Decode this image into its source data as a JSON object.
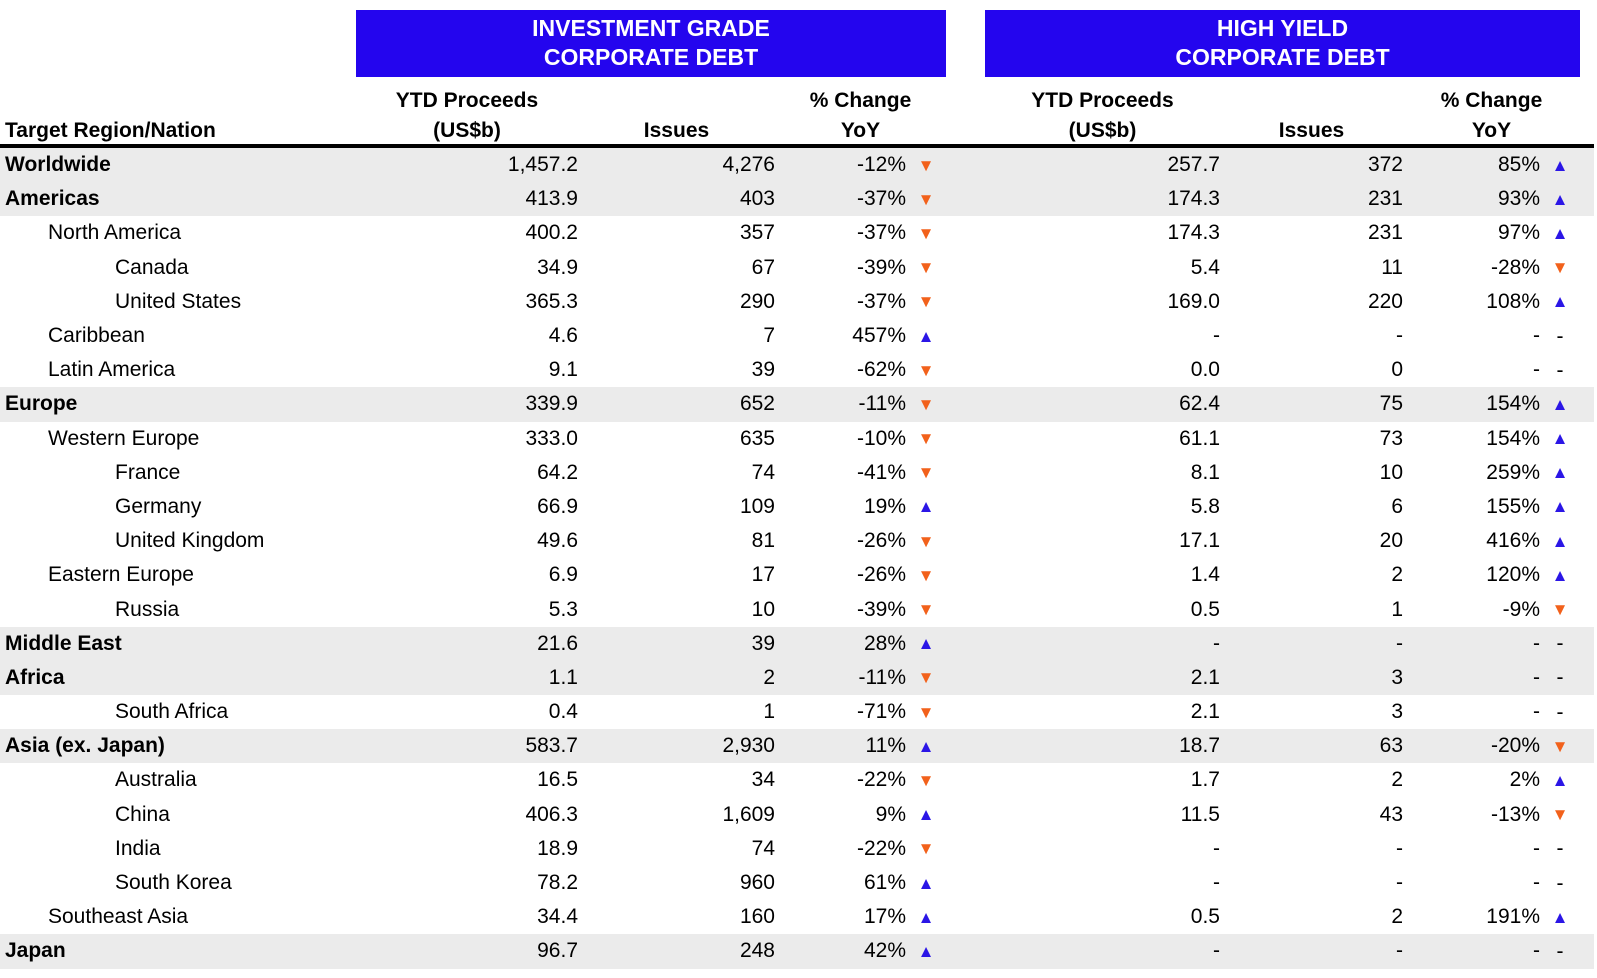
{
  "title_banners": {
    "ig_line1": "INVESTMENT GRADE",
    "ig_line2": "CORPORATE DEBT",
    "hy_line1": "HIGH YIELD",
    "hy_line2": "CORPORATE DEBT"
  },
  "column_headers": {
    "region": "Target Region/Nation",
    "proceeds_l1": "YTD Proceeds",
    "proceeds_l2": "(US$b)",
    "issues": "Issues",
    "change_l1": "% Change",
    "change_l2": "YoY"
  },
  "icons": {
    "up": "▲",
    "down": "▼",
    "dash": "-"
  },
  "colors": {
    "banner_blue": "#2405EE",
    "arrow_up_blue": "#2B16E6",
    "arrow_down_orange": "#F2611B",
    "row_shade_gray": "#EBEBEB"
  },
  "chart_data": {
    "type": "table",
    "columns": [
      "Target Region/Nation",
      "IG YTD Proceeds (US$b)",
      "IG Issues",
      "IG % Change YoY",
      "HY YTD Proceeds (US$b)",
      "HY Issues",
      "HY % Change YoY"
    ],
    "rows": [
      {
        "region": "Worldwide",
        "level": 0,
        "bold": true,
        "shaded": true,
        "ig": {
          "proceeds": "1,457.2",
          "issues": "4,276",
          "change": "-12%",
          "dir": "down"
        },
        "hy": {
          "proceeds": "257.7",
          "issues": "372",
          "change": "85%",
          "dir": "up"
        }
      },
      {
        "region": "Americas",
        "level": 0,
        "bold": true,
        "shaded": true,
        "ig": {
          "proceeds": "413.9",
          "issues": "403",
          "change": "-37%",
          "dir": "down"
        },
        "hy": {
          "proceeds": "174.3",
          "issues": "231",
          "change": "93%",
          "dir": "up"
        }
      },
      {
        "region": "North America",
        "level": 1,
        "bold": false,
        "shaded": false,
        "ig": {
          "proceeds": "400.2",
          "issues": "357",
          "change": "-37%",
          "dir": "down"
        },
        "hy": {
          "proceeds": "174.3",
          "issues": "231",
          "change": "97%",
          "dir": "up"
        }
      },
      {
        "region": "Canada",
        "level": 2,
        "bold": false,
        "shaded": false,
        "ig": {
          "proceeds": "34.9",
          "issues": "67",
          "change": "-39%",
          "dir": "down"
        },
        "hy": {
          "proceeds": "5.4",
          "issues": "11",
          "change": "-28%",
          "dir": "down"
        }
      },
      {
        "region": "United States",
        "level": 2,
        "bold": false,
        "shaded": false,
        "ig": {
          "proceeds": "365.3",
          "issues": "290",
          "change": "-37%",
          "dir": "down"
        },
        "hy": {
          "proceeds": "169.0",
          "issues": "220",
          "change": "108%",
          "dir": "up"
        }
      },
      {
        "region": "Caribbean",
        "level": 1,
        "bold": false,
        "shaded": false,
        "ig": {
          "proceeds": "4.6",
          "issues": "7",
          "change": "457%",
          "dir": "up"
        },
        "hy": {
          "proceeds": "-",
          "issues": "-",
          "change": "-",
          "dir": "dash"
        }
      },
      {
        "region": "Latin America",
        "level": 1,
        "bold": false,
        "shaded": false,
        "ig": {
          "proceeds": "9.1",
          "issues": "39",
          "change": "-62%",
          "dir": "down"
        },
        "hy": {
          "proceeds": "0.0",
          "issues": "0",
          "change": "-",
          "dir": "dash"
        }
      },
      {
        "region": "Europe",
        "level": 0,
        "bold": true,
        "shaded": true,
        "ig": {
          "proceeds": "339.9",
          "issues": "652",
          "change": "-11%",
          "dir": "down"
        },
        "hy": {
          "proceeds": "62.4",
          "issues": "75",
          "change": "154%",
          "dir": "up"
        }
      },
      {
        "region": "Western Europe",
        "level": 1,
        "bold": false,
        "shaded": false,
        "ig": {
          "proceeds": "333.0",
          "issues": "635",
          "change": "-10%",
          "dir": "down"
        },
        "hy": {
          "proceeds": "61.1",
          "issues": "73",
          "change": "154%",
          "dir": "up"
        }
      },
      {
        "region": "France",
        "level": 2,
        "bold": false,
        "shaded": false,
        "ig": {
          "proceeds": "64.2",
          "issues": "74",
          "change": "-41%",
          "dir": "down"
        },
        "hy": {
          "proceeds": "8.1",
          "issues": "10",
          "change": "259%",
          "dir": "up"
        }
      },
      {
        "region": "Germany",
        "level": 2,
        "bold": false,
        "shaded": false,
        "ig": {
          "proceeds": "66.9",
          "issues": "109",
          "change": "19%",
          "dir": "up"
        },
        "hy": {
          "proceeds": "5.8",
          "issues": "6",
          "change": "155%",
          "dir": "up"
        }
      },
      {
        "region": "United Kingdom",
        "level": 2,
        "bold": false,
        "shaded": false,
        "ig": {
          "proceeds": "49.6",
          "issues": "81",
          "change": "-26%",
          "dir": "down"
        },
        "hy": {
          "proceeds": "17.1",
          "issues": "20",
          "change": "416%",
          "dir": "up"
        }
      },
      {
        "region": "Eastern Europe",
        "level": 1,
        "bold": false,
        "shaded": false,
        "ig": {
          "proceeds": "6.9",
          "issues": "17",
          "change": "-26%",
          "dir": "down"
        },
        "hy": {
          "proceeds": "1.4",
          "issues": "2",
          "change": "120%",
          "dir": "up"
        }
      },
      {
        "region": "Russia",
        "level": 2,
        "bold": false,
        "shaded": false,
        "ig": {
          "proceeds": "5.3",
          "issues": "10",
          "change": "-39%",
          "dir": "down"
        },
        "hy": {
          "proceeds": "0.5",
          "issues": "1",
          "change": "-9%",
          "dir": "down"
        }
      },
      {
        "region": "Middle East",
        "level": 0,
        "bold": true,
        "shaded": true,
        "ig": {
          "proceeds": "21.6",
          "issues": "39",
          "change": "28%",
          "dir": "up"
        },
        "hy": {
          "proceeds": "-",
          "issues": "-",
          "change": "-",
          "dir": "dash"
        }
      },
      {
        "region": "Africa",
        "level": 0,
        "bold": true,
        "shaded": true,
        "ig": {
          "proceeds": "1.1",
          "issues": "2",
          "change": "-11%",
          "dir": "down"
        },
        "hy": {
          "proceeds": "2.1",
          "issues": "3",
          "change": "-",
          "dir": "dash"
        }
      },
      {
        "region": "South Africa",
        "level": 2,
        "bold": false,
        "shaded": false,
        "ig": {
          "proceeds": "0.4",
          "issues": "1",
          "change": "-71%",
          "dir": "down"
        },
        "hy": {
          "proceeds": "2.1",
          "issues": "3",
          "change": "-",
          "dir": "dash"
        }
      },
      {
        "region": "Asia (ex. Japan)",
        "level": 0,
        "bold": true,
        "shaded": true,
        "ig": {
          "proceeds": "583.7",
          "issues": "2,930",
          "change": "11%",
          "dir": "up"
        },
        "hy": {
          "proceeds": "18.7",
          "issues": "63",
          "change": "-20%",
          "dir": "down"
        }
      },
      {
        "region": "Australia",
        "level": 2,
        "bold": false,
        "shaded": false,
        "ig": {
          "proceeds": "16.5",
          "issues": "34",
          "change": "-22%",
          "dir": "down"
        },
        "hy": {
          "proceeds": "1.7",
          "issues": "2",
          "change": "2%",
          "dir": "up"
        }
      },
      {
        "region": "China",
        "level": 2,
        "bold": false,
        "shaded": false,
        "ig": {
          "proceeds": "406.3",
          "issues": "1,609",
          "change": "9%",
          "dir": "up"
        },
        "hy": {
          "proceeds": "11.5",
          "issues": "43",
          "change": "-13%",
          "dir": "down"
        }
      },
      {
        "region": "India",
        "level": 2,
        "bold": false,
        "shaded": false,
        "ig": {
          "proceeds": "18.9",
          "issues": "74",
          "change": "-22%",
          "dir": "down"
        },
        "hy": {
          "proceeds": "-",
          "issues": "-",
          "change": "-",
          "dir": "dash"
        }
      },
      {
        "region": "South Korea",
        "level": 2,
        "bold": false,
        "shaded": false,
        "ig": {
          "proceeds": "78.2",
          "issues": "960",
          "change": "61%",
          "dir": "up"
        },
        "hy": {
          "proceeds": "-",
          "issues": "-",
          "change": "-",
          "dir": "dash"
        }
      },
      {
        "region": "Southeast Asia",
        "level": 1,
        "bold": false,
        "shaded": false,
        "ig": {
          "proceeds": "34.4",
          "issues": "160",
          "change": "17%",
          "dir": "up"
        },
        "hy": {
          "proceeds": "0.5",
          "issues": "2",
          "change": "191%",
          "dir": "up"
        }
      },
      {
        "region": "Japan",
        "level": 0,
        "bold": true,
        "shaded": true,
        "ig": {
          "proceeds": "96.7",
          "issues": "248",
          "change": "42%",
          "dir": "up"
        },
        "hy": {
          "proceeds": "-",
          "issues": "-",
          "change": "-",
          "dir": "dash"
        }
      }
    ]
  }
}
